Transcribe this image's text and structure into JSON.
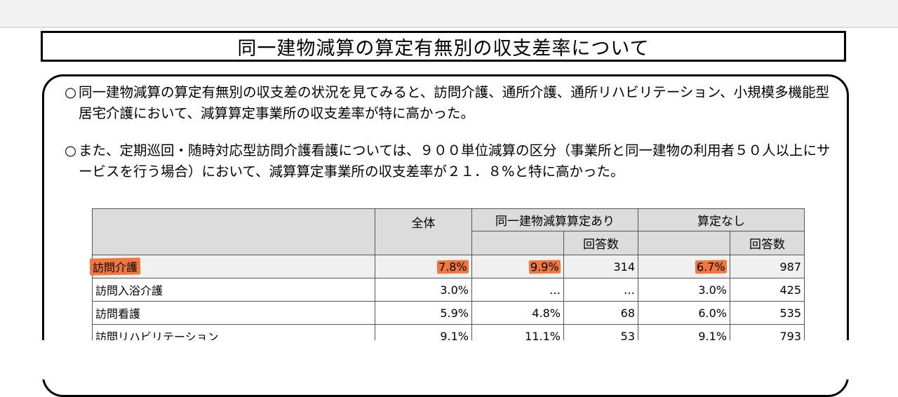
{
  "title": "同一建物減算の算定有無別の収支差率について",
  "bullets": [
    {
      "mark": "○",
      "text": "同一建物減算の算定有無別の収支差の状況を見てみると、訪問介護、通所介護、通所リハビリテーション、小規模多機能型居宅介護において、減算算定事業所の収支差率が特に高かった。"
    },
    {
      "mark": "○",
      "text": "また、定期巡回・随時対応型訪問介護看護については、９００単位減算の区分（事業所と同一建物の利用者５０人以上にサービスを行う場合）において、減算算定事業所の収支差率が２１．８%と特に高かった。"
    }
  ],
  "table": {
    "headers": {
      "all": "全体",
      "applied": "同一建物減算算定あり",
      "not_applied": "算定なし",
      "responses": "回答数"
    },
    "rows": [
      {
        "name": "訪問介護",
        "all": "7.8%",
        "applied_rate": "9.9%",
        "applied_n": "314",
        "none_rate": "6.7%",
        "none_n": "987"
      },
      {
        "name": "訪問入浴介護",
        "all": "3.0%",
        "applied_rate": "…",
        "applied_n": "…",
        "none_rate": "3.0%",
        "none_n": "425"
      },
      {
        "name": "訪問看護",
        "all": "5.9%",
        "applied_rate": "4.8%",
        "applied_n": "68",
        "none_rate": "6.0%",
        "none_n": "535"
      },
      {
        "name": "訪問リハビリテーション",
        "all": "9.1%",
        "applied_rate": "11.1%",
        "applied_n": "53",
        "none_rate": "9.1%",
        "none_n": "793"
      }
    ]
  },
  "colors": {
    "highlight": "#f0783c",
    "header_bg": "#dcdcdc"
  }
}
